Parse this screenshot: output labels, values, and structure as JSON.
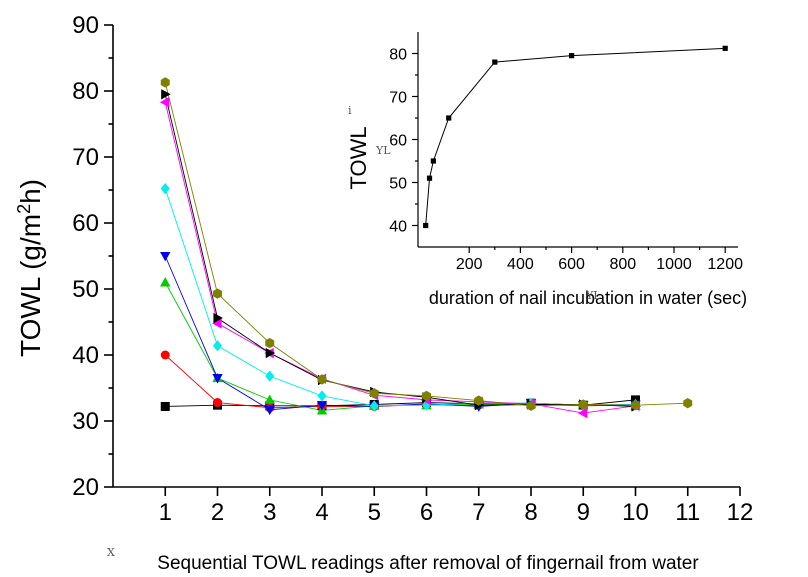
{
  "chart_data": [
    {
      "type": "line",
      "xlabel": "Sequential TOWL readings after removal of fingernail from water",
      "ylabel": "TOWL (g/m2h)",
      "ylabel_parts": {
        "before": "TOWL (g/m",
        "sup": "2",
        "after": "h)"
      },
      "xlim": [
        0,
        12
      ],
      "ylim": [
        20,
        90
      ],
      "xticks": [
        1,
        2,
        3,
        4,
        5,
        6,
        7,
        8,
        9,
        10,
        11,
        12
      ],
      "yticks": [
        20,
        30,
        40,
        50,
        60,
        70,
        80,
        90
      ],
      "grid": false,
      "series": [
        {
          "color": "#000000",
          "marker": "square",
          "x": [
            1,
            2,
            3,
            4,
            5,
            6,
            7,
            8,
            9,
            10
          ],
          "values": [
            32.2,
            32.4,
            32.3,
            32.3,
            32.5,
            32.8,
            32.6,
            32.7,
            32.4,
            33.2
          ]
        },
        {
          "color": "#ff0000",
          "marker": "circle",
          "x": [
            1,
            2,
            3,
            4,
            5,
            6,
            7,
            8,
            9,
            10
          ],
          "values": [
            40,
            32.8,
            32.0,
            32.2,
            32.2,
            32.5,
            32.4,
            32.5,
            32.3,
            32.4
          ]
        },
        {
          "color": "#00cc00",
          "marker": "triangle-up",
          "x": [
            1,
            2,
            3,
            4,
            5,
            6,
            7,
            8,
            9,
            10
          ],
          "values": [
            51,
            36.5,
            33.2,
            31.6,
            32.3,
            32.4,
            32.5,
            32.6,
            32.4,
            32.3
          ]
        },
        {
          "color": "#0000ee",
          "marker": "triangle-down",
          "x": [
            1,
            2,
            3,
            4,
            5,
            6,
            7,
            8,
            9,
            10
          ],
          "values": [
            55,
            36.5,
            31.7,
            32.4,
            32.2,
            32.6,
            32.2,
            32.7,
            32.4,
            32.5
          ]
        },
        {
          "color": "#00eeee",
          "marker": "diamond",
          "x": [
            1,
            2,
            3,
            4,
            5,
            6,
            7,
            8,
            9,
            10
          ],
          "values": [
            65.2,
            41.4,
            36.8,
            33.8,
            32.3,
            32.4,
            32.7,
            32.7,
            32.4,
            32.5
          ]
        },
        {
          "color": "#ff00ff",
          "marker": "triangle-left",
          "x": [
            1,
            2,
            3,
            4,
            5,
            6,
            7,
            8,
            9,
            10
          ],
          "values": [
            78.3,
            44.8,
            40.3,
            36.4,
            33.9,
            33.2,
            32.9,
            32.6,
            31.2,
            32.3
          ]
        },
        {
          "color": "#000000",
          "marker": "triangle-right",
          "x": [
            1,
            2,
            3,
            4,
            5,
            6,
            7,
            8,
            9,
            10
          ],
          "values": [
            79.5,
            45.6,
            40.3,
            36.2,
            34.4,
            33.6,
            32.4,
            32.5,
            32.5,
            32.2
          ]
        },
        {
          "color": "#808000",
          "marker": "hexagon",
          "x": [
            1,
            2,
            3,
            4,
            5,
            6,
            7,
            8,
            9,
            10,
            11
          ],
          "values": [
            81.3,
            49.3,
            41.8,
            36.3,
            34.2,
            33.8,
            33.1,
            32.3,
            32.5,
            32.4,
            32.7
          ]
        }
      ]
    },
    {
      "type": "line",
      "xlabel": "duration of nail incubation in water (sec)",
      "ylabel": "TOWL",
      "xlim": [
        0,
        1250
      ],
      "ylim": [
        35,
        85
      ],
      "xticks": [
        200,
        400,
        600,
        800,
        1000,
        1200
      ],
      "yticks": [
        40,
        50,
        60,
        70,
        80
      ],
      "grid": false,
      "series": [
        {
          "color": "#000000",
          "marker": "square",
          "x": [
            30,
            45,
            60,
            120,
            300,
            600,
            1200
          ],
          "values": [
            40,
            51,
            55,
            65,
            78,
            79.5,
            81.2
          ]
        }
      ]
    }
  ],
  "artifacts": {
    "main_x_stray": "X",
    "inset_y_stray": "YL",
    "inset_y_sup": "i",
    "inset_x_stray": "YL"
  }
}
